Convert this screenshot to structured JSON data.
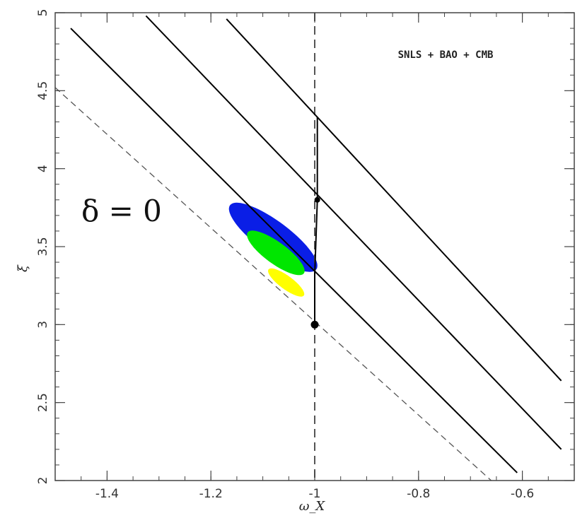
{
  "chart_data": {
    "type": "contour",
    "annotation": "SNLS + BAO + CMB",
    "region_label": "δ = 0",
    "xlabel": "ω_X",
    "ylabel": "ξ",
    "xlim": [
      -1.5,
      -0.5
    ],
    "ylim": [
      2.0,
      5.0
    ],
    "xticks": [
      -1.4,
      -1.2,
      -1.0,
      -0.8,
      -0.6
    ],
    "xtick_labels": [
      "-1.4",
      "-1.2",
      "-1",
      "-0.8",
      "-0.6"
    ],
    "yticks": [
      2.0,
      2.5,
      3.0,
      3.5,
      4.0,
      4.5,
      5.0
    ],
    "ytick_labels": [
      "2",
      "2.5",
      "3",
      "3.5",
      "4",
      "4.5",
      "5"
    ],
    "confidence_regions": [
      {
        "level": "outer",
        "color": "#0a1ee6",
        "center": [
          -1.08,
          3.56
        ],
        "semi_major": 0.233,
        "semi_minor": 0.046,
        "axis_direction": [
          -0.43,
          1.3
        ]
      },
      {
        "level": "middle",
        "color": "#00e600",
        "center": [
          -1.075,
          3.46
        ],
        "semi_major": 0.15,
        "semi_minor": 0.031,
        "axis_direction": [
          -0.43,
          1.3
        ]
      },
      {
        "level": "inner",
        "color": "#ffff00",
        "center": [
          -1.055,
          3.27
        ],
        "semi_major": 0.095,
        "semi_minor": 0.019,
        "axis_direction": [
          -0.43,
          1.3
        ]
      }
    ],
    "vertical_reference": {
      "x": -1.0,
      "style": "dashed"
    },
    "lines": [
      {
        "name": "line-1",
        "style": "solid",
        "points": [
          [
            -1.47,
            4.9
          ],
          [
            -0.61,
            2.05
          ]
        ]
      },
      {
        "name": "line-2",
        "style": "solid",
        "points": [
          [
            -1.325,
            4.98
          ],
          [
            -0.525,
            2.2
          ]
        ]
      },
      {
        "name": "line-3",
        "style": "solid",
        "points": [
          [
            -1.17,
            4.96
          ],
          [
            -0.525,
            2.64
          ]
        ]
      },
      {
        "name": "line-4",
        "style": "dashed",
        "points": [
          [
            -1.5,
            4.52
          ],
          [
            -0.66,
            2.0
          ]
        ]
      }
    ],
    "trajectory": {
      "points": [
        [
          -0.995,
          4.33
        ],
        [
          -0.995,
          3.8
        ],
        [
          -1.0,
          3.32
        ],
        [
          -1.0,
          3.0
        ]
      ]
    },
    "markers": [
      {
        "x": -1.0,
        "y": 3.0,
        "size": "large"
      },
      {
        "x": -0.995,
        "y": 3.8,
        "size": "small"
      }
    ],
    "colors": {
      "outer": "#0a1ee6",
      "middle": "#00e600",
      "inner": "#ffff00",
      "axis": "#444444"
    }
  }
}
